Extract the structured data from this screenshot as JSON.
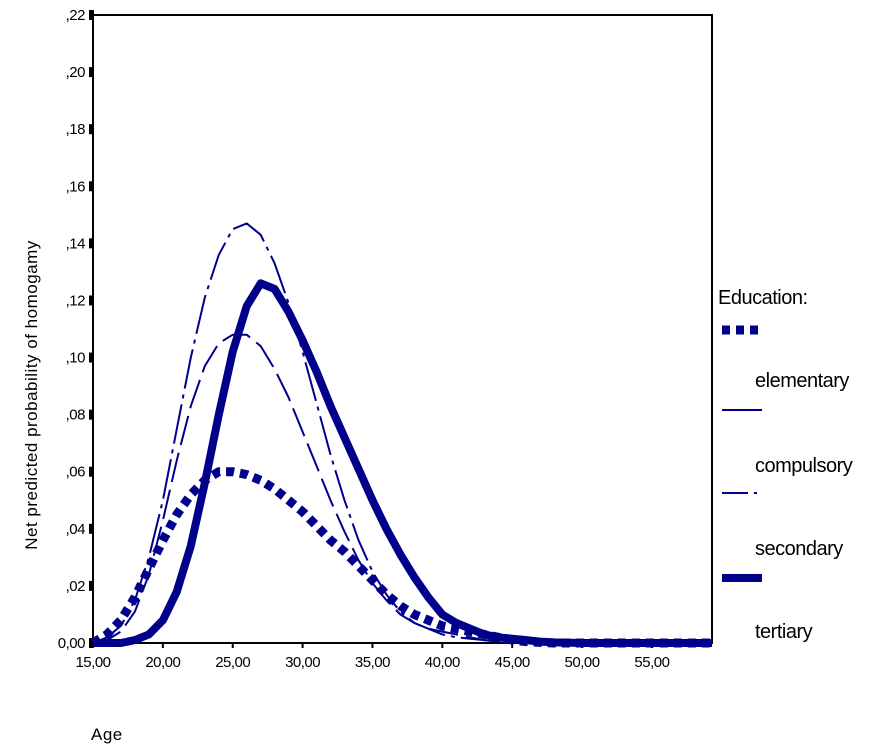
{
  "chart_data": {
    "type": "line",
    "xlabel": "Age",
    "ylabel": "Net predicted probability of homogamy",
    "xlim": [
      15,
      59.3
    ],
    "ylim": [
      0,
      0.22
    ],
    "x_ticks": [
      15,
      20,
      25,
      30,
      35,
      40,
      45,
      50,
      55
    ],
    "x_tick_labels": [
      "15,00",
      "20,00",
      "25,00",
      "30,00",
      "35,00",
      "40,00",
      "45,00",
      "50,00",
      "55,00"
    ],
    "y_ticks": [
      0,
      0.02,
      0.04,
      0.06,
      0.08,
      0.1,
      0.12,
      0.14,
      0.16,
      0.18,
      0.2,
      0.22
    ],
    "y_tick_labels": [
      "0,00",
      ",02",
      ",04",
      ",06",
      ",08",
      ",10",
      ",12",
      ",14",
      ",16",
      ",18",
      ",20",
      ",22"
    ],
    "legend": {
      "title": "Education:",
      "placement": "right",
      "entries": [
        "elementary",
        "compulsory",
        "secondary",
        "tertiary"
      ]
    },
    "color": "#00008B",
    "series": [
      {
        "name": "elementary",
        "style": "dotted-thick",
        "x": [
          15,
          16,
          17,
          18,
          19,
          20,
          21,
          22,
          23,
          24,
          25,
          26,
          27,
          28,
          29,
          30,
          31,
          32,
          33,
          34,
          35,
          36,
          37,
          38,
          39,
          40,
          41,
          42,
          43,
          44,
          45,
          46,
          47,
          48,
          50,
          55,
          59.3
        ],
        "y": [
          0.0,
          0.003,
          0.008,
          0.016,
          0.026,
          0.036,
          0.045,
          0.052,
          0.057,
          0.06,
          0.06,
          0.059,
          0.057,
          0.054,
          0.05,
          0.046,
          0.041,
          0.036,
          0.032,
          0.027,
          0.022,
          0.017,
          0.013,
          0.01,
          0.008,
          0.006,
          0.005,
          0.004,
          0.003,
          0.002,
          0.001,
          0.0005,
          0.0002,
          0,
          0,
          0,
          0
        ]
      },
      {
        "name": "compulsory",
        "style": "long-dash",
        "x": [
          15,
          16,
          17,
          18,
          19,
          20,
          21,
          22,
          23,
          24,
          25,
          26,
          27,
          28,
          29,
          30,
          31,
          32,
          33,
          34,
          35,
          36,
          37,
          38,
          39,
          40,
          41,
          42,
          43,
          44,
          45,
          47,
          50,
          55,
          59.3
        ],
        "y": [
          0.0,
          0.001,
          0.004,
          0.011,
          0.024,
          0.043,
          0.064,
          0.083,
          0.097,
          0.105,
          0.108,
          0.108,
          0.104,
          0.096,
          0.086,
          0.074,
          0.062,
          0.05,
          0.039,
          0.029,
          0.021,
          0.015,
          0.01,
          0.007,
          0.005,
          0.004,
          0.003,
          0.002,
          0.001,
          0.0005,
          0.0002,
          0,
          0,
          0,
          0
        ]
      },
      {
        "name": "secondary",
        "style": "dash-dot",
        "x": [
          15,
          16,
          17,
          18,
          19,
          20,
          21,
          22,
          23,
          24,
          25,
          26,
          27,
          28,
          29,
          30,
          31,
          32,
          33,
          34,
          35,
          36,
          37,
          38,
          39,
          40,
          41,
          42,
          43,
          44,
          45,
          47,
          50,
          55,
          59.3
        ],
        "y": [
          0.0,
          0.002,
          0.006,
          0.015,
          0.03,
          0.05,
          0.075,
          0.1,
          0.121,
          0.136,
          0.145,
          0.147,
          0.143,
          0.133,
          0.119,
          0.102,
          0.084,
          0.066,
          0.05,
          0.036,
          0.025,
          0.017,
          0.011,
          0.007,
          0.005,
          0.003,
          0.002,
          0.0015,
          0.001,
          0.0005,
          0.0002,
          0,
          0,
          0,
          0
        ]
      },
      {
        "name": "tertiary",
        "style": "solid-thick",
        "x": [
          15,
          16,
          17,
          18,
          19,
          20,
          21,
          22,
          23,
          24,
          25,
          26,
          27,
          28,
          29,
          30,
          31,
          32,
          33,
          34,
          35,
          36,
          37,
          38,
          39,
          40,
          41,
          42,
          43,
          44,
          45,
          46,
          47,
          48,
          50,
          55,
          59.3
        ],
        "y": [
          0.0,
          0.0,
          0.0,
          0.001,
          0.003,
          0.008,
          0.018,
          0.034,
          0.056,
          0.08,
          0.102,
          0.118,
          0.126,
          0.124,
          0.116,
          0.106,
          0.095,
          0.083,
          0.072,
          0.061,
          0.05,
          0.04,
          0.031,
          0.023,
          0.016,
          0.01,
          0.007,
          0.005,
          0.003,
          0.002,
          0.0015,
          0.001,
          0.0005,
          0.0002,
          0,
          0,
          0
        ]
      }
    ]
  }
}
